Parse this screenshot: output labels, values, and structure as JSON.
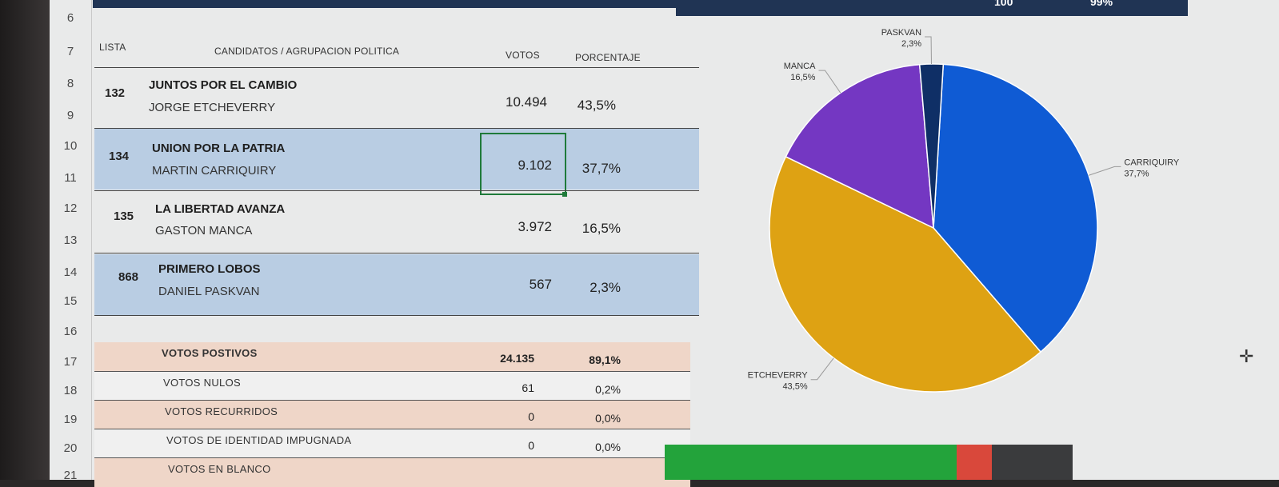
{
  "row_numbers": [
    "6",
    "7",
    "8",
    "9",
    "10",
    "11",
    "12",
    "13",
    "14",
    "15",
    "16",
    "17",
    "18",
    "19",
    "20",
    "21"
  ],
  "top_bar_right": {
    "value_a": "100",
    "value_b": "99%"
  },
  "headers": {
    "lista": "LISTA",
    "candidatos": "CANDIDATOS / AGRUPACION POLITICA",
    "votos": "VOTOS",
    "porcentaje": "PORCENTAJE"
  },
  "candidates": [
    {
      "lista": "132",
      "party": "JUNTOS POR EL CAMBIO",
      "candidate": "JORGE ETCHEVERRY",
      "votos": "10.494",
      "pct": "43,5%"
    },
    {
      "lista": "134",
      "party": "UNION POR LA PATRIA",
      "candidate": "MARTIN CARRIQUIRY",
      "votos": "9.102",
      "pct": "37,7%"
    },
    {
      "lista": "135",
      "party": "LA LIBERTAD AVANZA",
      "candidate": "GASTON MANCA",
      "votos": "3.972",
      "pct": "16,5%"
    },
    {
      "lista": "868",
      "party": "PRIMERO LOBOS",
      "candidate": "DANIEL PASKVAN",
      "votos": "567",
      "pct": "2,3%"
    }
  ],
  "summary": [
    {
      "label": "VOTOS POSTIVOS",
      "votos": "24.135",
      "pct": "89,1%"
    },
    {
      "label": "VOTOS NULOS",
      "votos": "61",
      "pct": "0,2%"
    },
    {
      "label": "VOTOS RECURRIDOS",
      "votos": "0",
      "pct": "0,0%"
    },
    {
      "label": "VOTOS DE IDENTIDAD IMPUGNADA",
      "votos": "0",
      "pct": "0,0%"
    },
    {
      "label": "VOTOS EN BLANCO",
      "votos": "",
      "pct": ""
    }
  ],
  "colors": {
    "etcheverry": "#dea213",
    "carriquiry": "#0f5bd4",
    "manca": "#7437c2",
    "paskvan": "#0f2f66",
    "row_blue": "#b9cde3",
    "row_peach": "#efd6c8",
    "header_navy": "#203454"
  },
  "chart_data": {
    "type": "pie",
    "slices": [
      {
        "name": "CARRIQUIRY",
        "label": "37,7%",
        "value": 37.7
      },
      {
        "name": "ETCHEVERRY",
        "label": "43,5%",
        "value": 43.5
      },
      {
        "name": "MANCA",
        "label": "16,5%",
        "value": 16.5
      },
      {
        "name": "PASKVAN",
        "label": "2,3%",
        "value": 2.3
      }
    ]
  },
  "bottom_bar_colors": [
    "#23a33b",
    "#d9483b",
    "#3a3b3d"
  ]
}
